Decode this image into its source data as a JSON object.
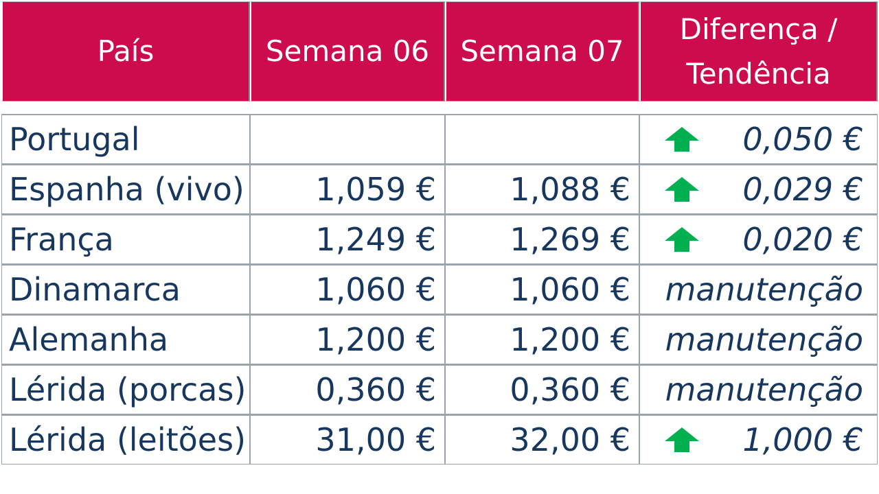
{
  "table": {
    "headers": {
      "country": "País",
      "week1": "Semana 06",
      "week2": "Semana 07",
      "trend_line1": "Diferença /",
      "trend_line2": "Tendência"
    },
    "colors": {
      "header_bg": "#cc0c4c",
      "text": "#17375e",
      "arrow_up": "#00b050"
    },
    "rows": [
      {
        "country": "Portugal",
        "week1": "",
        "week2": "",
        "trend_icon": "arrow-up-icon",
        "trend": "0,050 €"
      },
      {
        "country": "Espanha (vivo)",
        "week1": "1,059 €",
        "week2": "1,088 €",
        "trend_icon": "arrow-up-icon",
        "trend": "0,029 €"
      },
      {
        "country": "França",
        "week1": "1,249 €",
        "week2": "1,269 €",
        "trend_icon": "arrow-up-icon",
        "trend": "0,020 €"
      },
      {
        "country": "Dinamarca",
        "week1": "1,060 €",
        "week2": "1,060 €",
        "trend_icon": "",
        "trend": "manutenção"
      },
      {
        "country": "Alemanha",
        "week1": "1,200 €",
        "week2": "1,200 €",
        "trend_icon": "",
        "trend": "manutenção"
      },
      {
        "country": "Lérida (porcas)",
        "week1": "0,360 €",
        "week2": "0,360 €",
        "trend_icon": "",
        "trend": "manutenção"
      },
      {
        "country": "Lérida (leitões)",
        "week1": "31,00 €",
        "week2": "32,00 €",
        "trend_icon": "arrow-up-icon",
        "trend": "1,000 €"
      }
    ]
  }
}
